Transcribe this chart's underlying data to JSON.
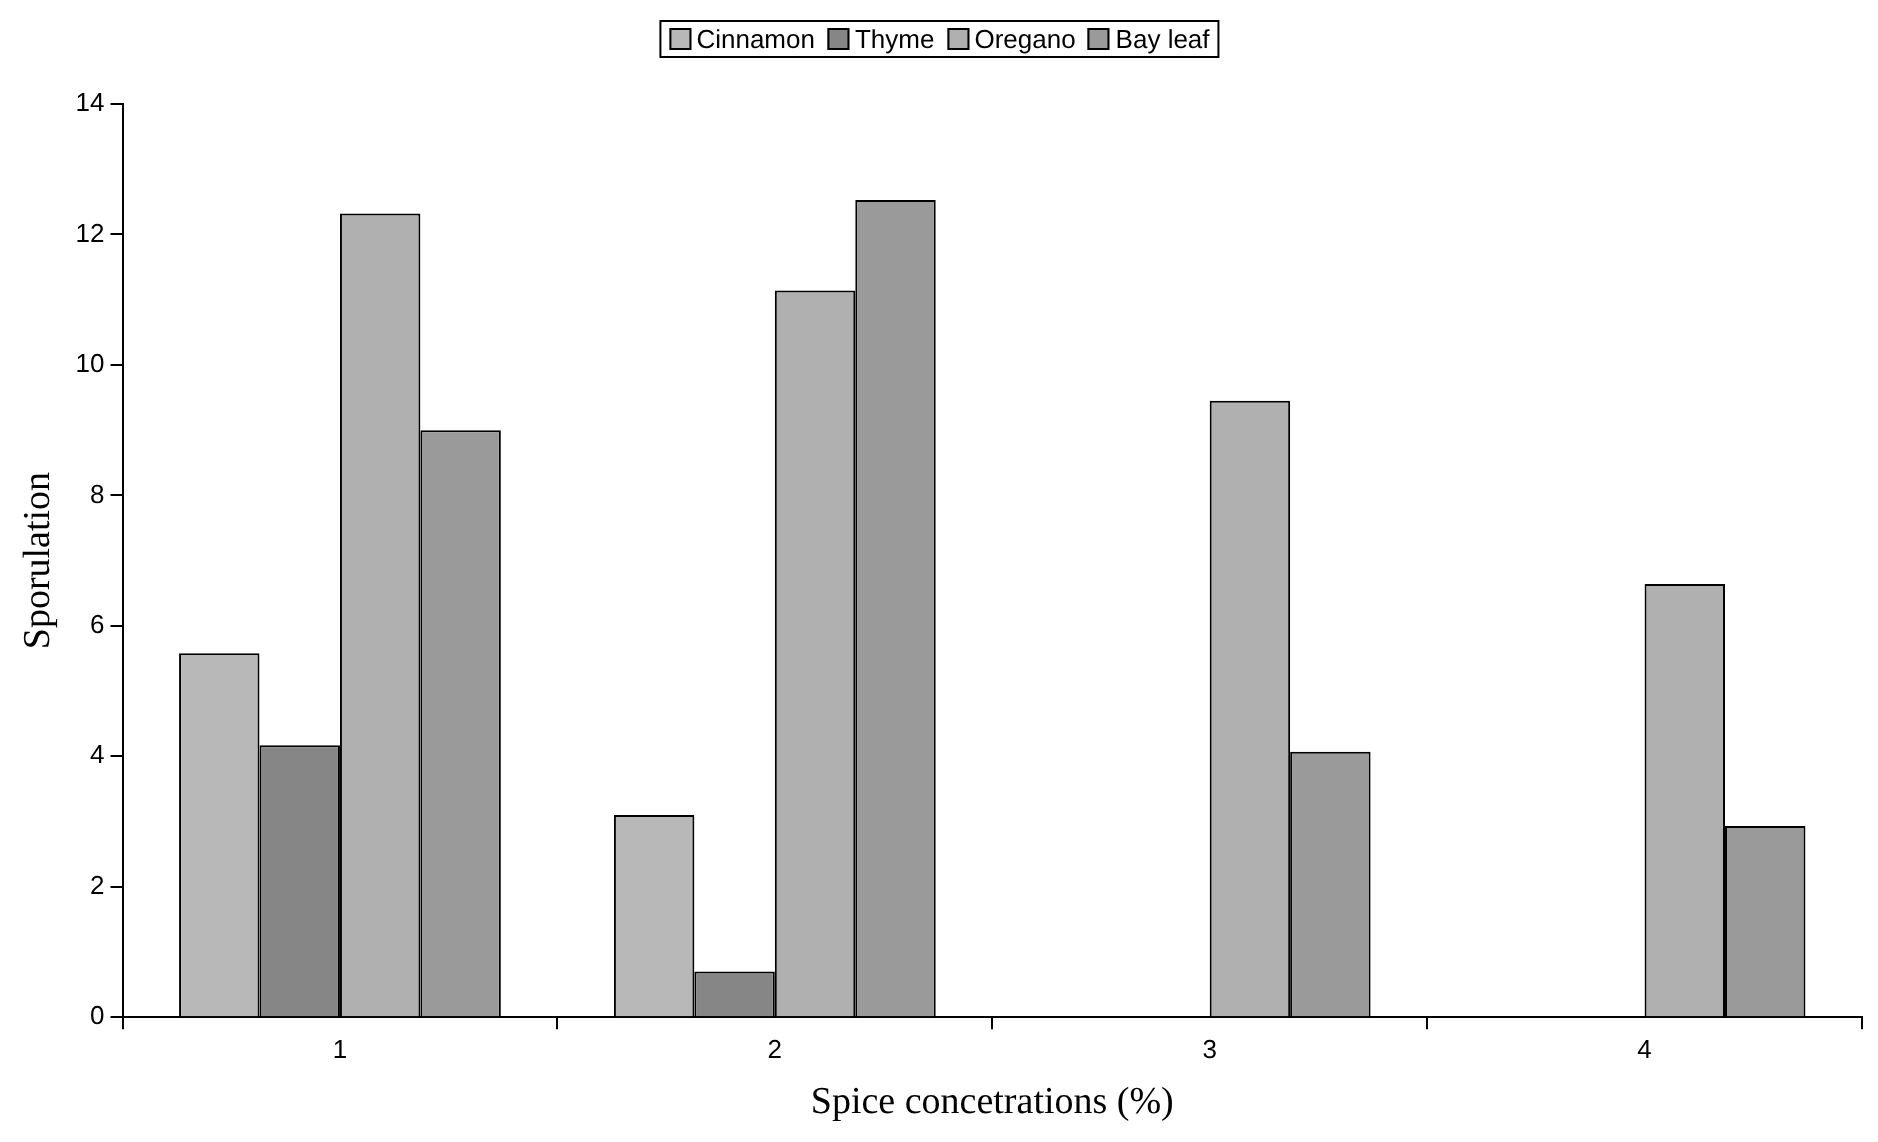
{
  "chart_data": {
    "type": "bar",
    "xlabel": "Spice concetrations (%)",
    "ylabel": "Sporulation",
    "categories": [
      "1",
      "2",
      "3",
      "4"
    ],
    "series": [
      {
        "name": "Cinnamon",
        "color": "#b8b8b8",
        "values": [
          5.58,
          3.1,
          null,
          null
        ]
      },
      {
        "name": "Thyme",
        "color": "#868686",
        "values": [
          4.17,
          0.7,
          null,
          null
        ]
      },
      {
        "name": "Oregano",
        "color": "#b0b0b0",
        "values": [
          12.32,
          11.14,
          9.45,
          6.64
        ]
      },
      {
        "name": "Bay leaf",
        "color": "#9a9a9a",
        "values": [
          9.0,
          12.53,
          4.07,
          2.93
        ]
      }
    ],
    "ylim": [
      0,
      14
    ],
    "yticks": [
      0,
      2,
      4,
      6,
      8,
      10,
      12,
      14
    ],
    "grid": false,
    "legend": "top"
  }
}
